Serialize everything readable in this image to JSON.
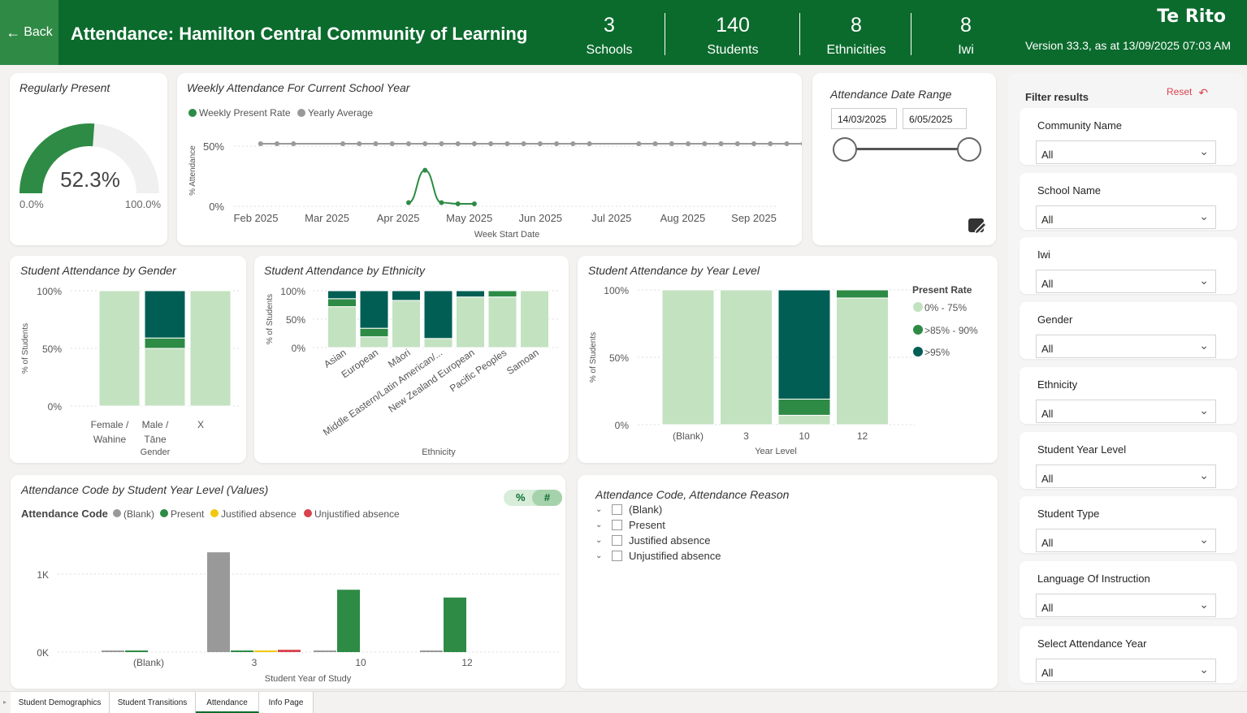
{
  "header": {
    "back_label": "Back",
    "title": "Attendance: Hamilton Central Community of Learning",
    "brand": "Te Rito",
    "version": "Version 33.3, as at 13/09/2025 07:03 AM",
    "stats": [
      {
        "value": "3",
        "label": "Schools"
      },
      {
        "value": "140",
        "label": "Students"
      },
      {
        "value": "8",
        "label": "Ethnicities"
      },
      {
        "value": "8",
        "label": "Iwi"
      }
    ]
  },
  "gauge": {
    "title": "Regularly Present",
    "value": "52.3%",
    "value_num": 52.3,
    "min": "0.0%",
    "max": "100.0%"
  },
  "weekly": {
    "title": "Weekly Attendance For Current School Year",
    "legend": [
      "Weekly Present Rate",
      "Yearly Average"
    ],
    "y_axis": "% Attendance",
    "x_axis": "Week Start Date",
    "y_ticks": [
      "50%",
      "0%"
    ],
    "x_ticks": [
      "Feb 2025",
      "Mar 2025",
      "Apr 2025",
      "May 2025",
      "Jun 2025",
      "Jul 2025",
      "Aug 2025",
      "Sep 2025"
    ]
  },
  "date_range": {
    "title": "Attendance Date Range",
    "start": "14/03/2025",
    "end": "6/05/2025"
  },
  "gender": {
    "title": "Student Attendance by Gender",
    "y_axis": "% of Students",
    "x_axis": "Gender",
    "y_ticks": [
      "100%",
      "50%",
      "0%"
    ],
    "categories": [
      "Female / Wahine",
      "Male / Tāne",
      "X"
    ]
  },
  "ethnicity": {
    "title": "Student Attendance by Ethnicity",
    "y_axis": "% of Students",
    "x_axis": "Ethnicity",
    "y_ticks": [
      "100%",
      "50%",
      "0%"
    ],
    "categories": [
      "Asian",
      "European",
      "Māori",
      "Middle Eastern/Latin American/...",
      "New Zealand European",
      "Pacific Peoples",
      "Samoan"
    ]
  },
  "year_level": {
    "title": "Student Attendance by Year Level",
    "y_axis": "% of Students",
    "x_axis": "Year Level",
    "y_ticks": [
      "100%",
      "50%",
      "0%"
    ],
    "categories": [
      "(Blank)",
      "3",
      "10",
      "12"
    ],
    "legend_title": "Present Rate",
    "legend": [
      "0% - 75%",
      ">85% - 90%",
      ">95%"
    ]
  },
  "code_chart": {
    "title": "Attendance Code by Student Year Level (Values)",
    "legend_title": "Attendance Code",
    "legend": [
      "(Blank)",
      "Present",
      "Justified absence",
      "Unjustified absence"
    ],
    "y_ticks": [
      "1K",
      "0K"
    ],
    "x_axis": "Student Year of Study",
    "categories": [
      "(Blank)",
      "3",
      "10",
      "12"
    ],
    "toggle": [
      "%",
      "#"
    ]
  },
  "slicer": {
    "title": "Attendance Code, Attendance Reason",
    "items": [
      "(Blank)",
      "Present",
      "Justified absence",
      "Unjustified absence"
    ]
  },
  "filters": {
    "title": "Filter results",
    "reset": "Reset",
    "items": [
      {
        "label": "Community Name",
        "value": "All"
      },
      {
        "label": "School Name",
        "value": "All"
      },
      {
        "label": "Iwi",
        "value": "All"
      },
      {
        "label": "Gender",
        "value": "All"
      },
      {
        "label": "Ethnicity",
        "value": "All"
      },
      {
        "label": "Student Year Level",
        "value": "All"
      },
      {
        "label": "Student Type",
        "value": "All"
      },
      {
        "label": "Language Of Instruction",
        "value": "All"
      },
      {
        "label": "Select Attendance Year",
        "value": "All"
      }
    ]
  },
  "tabs": [
    "Student Demographics",
    "Student Transitions",
    "Attendance",
    "Info Page"
  ],
  "colors": {
    "header": "#0b6b2d",
    "light_green": "#c3e2c0",
    "mid_green": "#2e8b45",
    "dark_teal": "#005e54",
    "grey": "#999999",
    "yellow": "#f2c80f",
    "red": "#d9434e"
  },
  "chart_data": [
    {
      "type": "line",
      "title": "Weekly Attendance For Current School Year",
      "xlabel": "Week Start Date",
      "ylabel": "% Attendance",
      "series": [
        {
          "name": "Weekly Present Rate",
          "x": [
            "2025-04-07",
            "2025-04-14",
            "2025-04-21",
            "2025-04-28",
            "2025-05-05"
          ],
          "values": [
            3,
            30,
            3,
            2,
            2
          ]
        },
        {
          "name": "Yearly Average",
          "x": [
            "2025-02-03",
            "2025-02-10",
            "2025-02-17",
            "2025-03-10",
            "2025-03-17",
            "2025-03-24",
            "2025-03-31",
            "2025-04-07",
            "2025-04-14",
            "2025-04-21",
            "2025-04-28",
            "2025-05-05",
            "2025-05-12",
            "2025-05-19",
            "2025-05-26",
            "2025-06-02",
            "2025-06-09",
            "2025-06-16",
            "2025-06-23",
            "2025-07-14",
            "2025-07-21",
            "2025-07-28",
            "2025-08-04",
            "2025-08-11",
            "2025-08-18",
            "2025-08-25",
            "2025-09-01",
            "2025-09-08",
            "2025-09-15",
            "2025-09-22"
          ],
          "values": [
            52,
            52,
            52,
            52,
            52,
            52,
            52,
            52,
            52,
            52,
            52,
            52,
            52,
            52,
            52,
            52,
            52,
            52,
            52,
            52,
            52,
            52,
            52,
            52,
            52,
            52,
            52,
            52,
            52,
            52
          ]
        }
      ],
      "ylim": [
        0,
        60
      ]
    },
    {
      "type": "bar",
      "stacked": true,
      "title": "Student Attendance by Gender",
      "categories": [
        "Female / Wahine",
        "Male / Tāne",
        "X"
      ],
      "series": [
        {
          "name": "0% - 75%",
          "values": [
            100,
            50,
            100
          ]
        },
        {
          "name": ">85% - 90%",
          "values": [
            0,
            9,
            0
          ]
        },
        {
          "name": ">95%",
          "values": [
            0,
            41,
            0
          ]
        }
      ]
    },
    {
      "type": "bar",
      "stacked": true,
      "title": "Student Attendance by Ethnicity",
      "categories": [
        "Asian",
        "European",
        "Māori",
        "Middle Eastern/Latin American/...",
        "New Zealand European",
        "Pacific Peoples",
        "Samoan"
      ],
      "series": [
        {
          "name": "0% - 75%",
          "values": [
            72,
            19,
            83,
            16,
            89,
            89,
            100
          ]
        },
        {
          "name": ">85% - 90%",
          "values": [
            14,
            15,
            0,
            0,
            0,
            11,
            0
          ]
        },
        {
          "name": ">95%",
          "values": [
            14,
            66,
            17,
            84,
            11,
            0,
            0
          ]
        }
      ]
    },
    {
      "type": "bar",
      "stacked": true,
      "title": "Student Attendance by Year Level",
      "categories": [
        "(Blank)",
        "3",
        "10",
        "12"
      ],
      "series": [
        {
          "name": "0% - 75%",
          "values": [
            100,
            100,
            7,
            94
          ]
        },
        {
          "name": ">85% - 90%",
          "values": [
            0,
            0,
            12,
            6
          ]
        },
        {
          "name": ">95%",
          "values": [
            0,
            0,
            81,
            0
          ]
        }
      ]
    },
    {
      "type": "bar",
      "title": "Attendance Code by Student Year Level (Values)",
      "categories": [
        "(Blank)",
        "3",
        "10",
        "12"
      ],
      "xlabel": "Student Year of Study",
      "series": [
        {
          "name": "(Blank)",
          "values": [
            10,
            1280,
            20,
            10
          ]
        },
        {
          "name": "Present",
          "values": [
            20,
            20,
            800,
            700
          ]
        },
        {
          "name": "Justified absence",
          "values": [
            0,
            20,
            0,
            0
          ]
        },
        {
          "name": "Unjustified absence",
          "values": [
            0,
            30,
            0,
            0
          ]
        }
      ],
      "ylim": [
        0,
        1400
      ]
    }
  ]
}
